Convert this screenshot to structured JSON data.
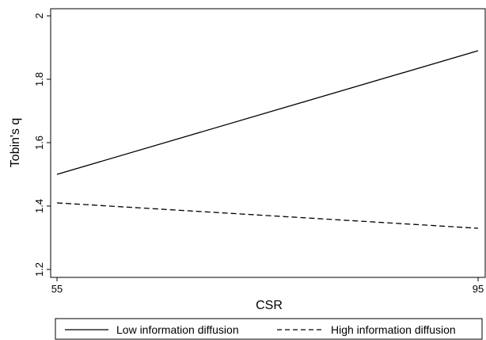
{
  "chart_data": {
    "type": "line",
    "title": "",
    "xlabel": "CSR",
    "ylabel": "Tobin's q",
    "xlim": [
      55,
      95
    ],
    "ylim": [
      1.2,
      2.0
    ],
    "x_ticks": [
      "55",
      "95"
    ],
    "y_ticks": [
      "1.2",
      "1.4",
      "1.6",
      "1.8",
      "2"
    ],
    "grid": false,
    "legend_position": "bottom",
    "series": [
      {
        "name": "Low information diffusion",
        "style": "solid",
        "color": "#000000",
        "x": [
          55,
          95
        ],
        "y": [
          1.5,
          1.89
        ]
      },
      {
        "name": "High information diffusion",
        "style": "dashed",
        "color": "#000000",
        "x": [
          55,
          95
        ],
        "y": [
          1.41,
          1.33
        ]
      }
    ]
  }
}
